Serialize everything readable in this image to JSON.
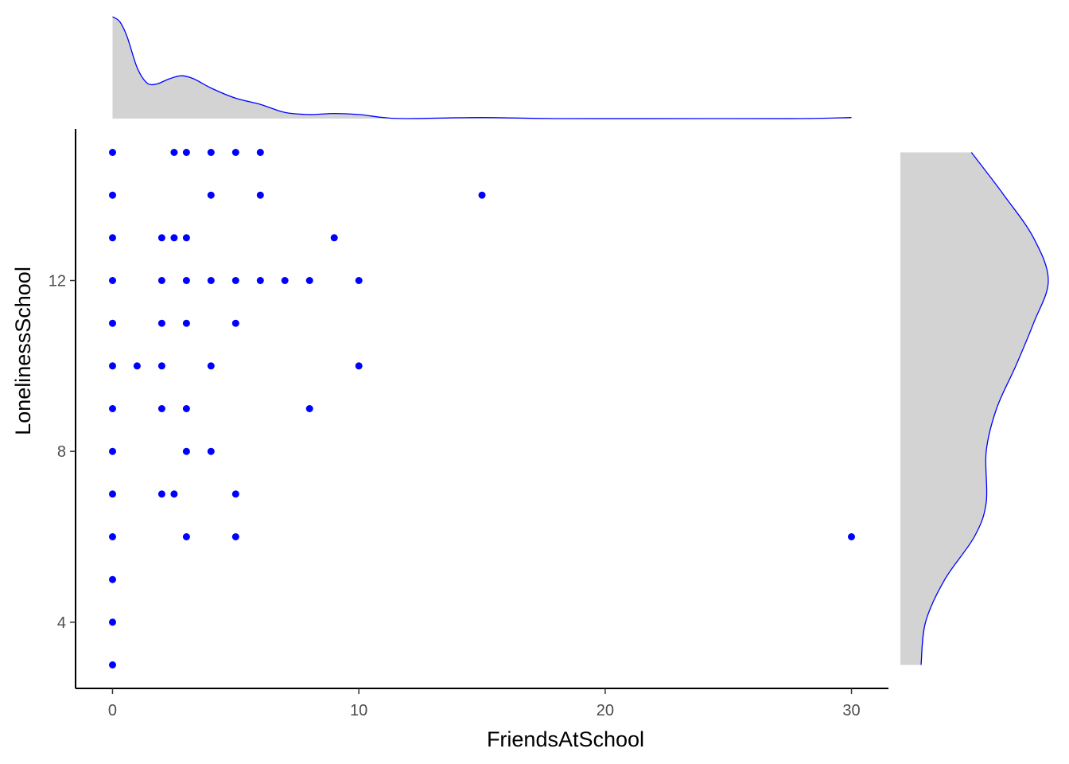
{
  "chart_data": {
    "type": "scatter",
    "title": "",
    "xlabel": "FriendsAtSchool",
    "ylabel": "LonelinessSchool",
    "xlim": [
      -1.5,
      31.5
    ],
    "ylim": [
      2.45,
      15.55
    ],
    "xticks": [
      0,
      10,
      20,
      30
    ],
    "yticks": [
      4,
      8,
      12
    ],
    "grid": false,
    "legend": "none",
    "point_color": "#0000FF",
    "density_fill": "#D3D3D3",
    "density_line": "#0000FF",
    "points": [
      [
        0,
        15
      ],
      [
        2.5,
        15
      ],
      [
        3,
        15
      ],
      [
        4,
        15
      ],
      [
        5,
        15
      ],
      [
        6,
        15
      ],
      [
        0,
        14
      ],
      [
        4,
        14
      ],
      [
        6,
        14
      ],
      [
        15,
        14
      ],
      [
        0,
        13
      ],
      [
        2,
        13
      ],
      [
        2.5,
        13
      ],
      [
        3,
        13
      ],
      [
        9,
        13
      ],
      [
        0,
        12
      ],
      [
        2,
        12
      ],
      [
        3,
        12
      ],
      [
        4,
        12
      ],
      [
        5,
        12
      ],
      [
        6,
        12
      ],
      [
        7,
        12
      ],
      [
        8,
        12
      ],
      [
        10,
        12
      ],
      [
        0,
        11
      ],
      [
        2,
        11
      ],
      [
        3,
        11
      ],
      [
        5,
        11
      ],
      [
        0,
        10
      ],
      [
        1,
        10
      ],
      [
        2,
        10
      ],
      [
        4,
        10
      ],
      [
        10,
        10
      ],
      [
        0,
        9
      ],
      [
        2,
        9
      ],
      [
        3,
        9
      ],
      [
        8,
        9
      ],
      [
        0,
        8
      ],
      [
        3,
        8
      ],
      [
        4,
        8
      ],
      [
        0,
        7
      ],
      [
        2,
        7
      ],
      [
        2.5,
        7
      ],
      [
        5,
        7
      ],
      [
        0,
        6
      ],
      [
        3,
        6
      ],
      [
        5,
        6
      ],
      [
        30,
        6
      ],
      [
        0,
        5
      ],
      [
        0,
        4
      ],
      [
        0,
        3
      ]
    ],
    "x_density": [
      [
        0,
        1.0
      ],
      [
        0.3,
        0.95
      ],
      [
        0.6,
        0.8
      ],
      [
        1.0,
        0.5
      ],
      [
        1.4,
        0.35
      ],
      [
        1.8,
        0.34
      ],
      [
        2.3,
        0.39
      ],
      [
        2.8,
        0.42
      ],
      [
        3.3,
        0.39
      ],
      [
        4.0,
        0.3
      ],
      [
        5.0,
        0.2
      ],
      [
        6.0,
        0.14
      ],
      [
        7.0,
        0.06
      ],
      [
        8.0,
        0.04
      ],
      [
        9.0,
        0.05
      ],
      [
        10.0,
        0.04
      ],
      [
        11.0,
        0.01
      ],
      [
        12.0,
        0.0
      ],
      [
        15.0,
        0.01
      ],
      [
        18.0,
        0.0
      ],
      [
        25.0,
        0.0
      ],
      [
        28.0,
        0.0
      ],
      [
        30.0,
        0.01
      ]
    ],
    "y_density": [
      [
        3,
        0.14
      ],
      [
        4,
        0.17
      ],
      [
        5,
        0.3
      ],
      [
        6,
        0.5
      ],
      [
        6.8,
        0.58
      ],
      [
        8,
        0.58
      ],
      [
        9,
        0.65
      ],
      [
        10,
        0.78
      ],
      [
        11,
        0.9
      ],
      [
        12,
        1.0
      ],
      [
        13,
        0.9
      ],
      [
        14,
        0.7
      ],
      [
        15,
        0.48
      ]
    ]
  }
}
